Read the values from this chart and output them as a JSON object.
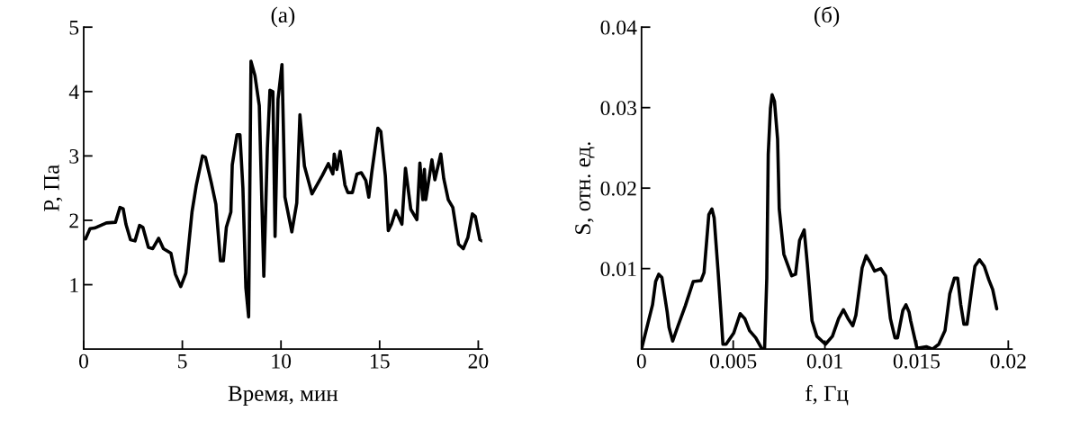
{
  "chart_data": [
    {
      "type": "line",
      "title": "(а)",
      "xlabel": "Время, мин",
      "ylabel": "P, Па",
      "xlim": [
        0,
        20.2
      ],
      "ylim": [
        0,
        5
      ],
      "xticks": [
        0,
        5,
        10,
        15,
        20
      ],
      "yticks": [
        1,
        2,
        3,
        4,
        5
      ],
      "grid": false,
      "legend": false,
      "series": [
        {
          "color": "#000000",
          "x": [
            0.09,
            0.32,
            0.55,
            1.15,
            1.61,
            1.84,
            2.0,
            2.14,
            2.37,
            2.6,
            2.83,
            3.0,
            3.28,
            3.5,
            3.8,
            4.04,
            4.42,
            4.65,
            4.92,
            5.18,
            5.49,
            5.71,
            6.02,
            6.17,
            6.47,
            6.7,
            6.93,
            7.08,
            7.23,
            7.46,
            7.53,
            7.77,
            7.92,
            8.07,
            8.22,
            8.36,
            8.48,
            8.68,
            8.9,
            9.13,
            9.31,
            9.44,
            9.59,
            9.7,
            9.85,
            10.05,
            10.2,
            10.55,
            10.8,
            10.96,
            11.19,
            11.57,
            12.1,
            12.4,
            12.63,
            12.7,
            12.83,
            13.0,
            13.24,
            13.39,
            13.62,
            13.85,
            14.07,
            14.3,
            14.45,
            14.6,
            14.91,
            15.06,
            15.29,
            15.44,
            15.6,
            15.82,
            16.13,
            16.31,
            16.58,
            16.89,
            17.04,
            17.19,
            17.27,
            17.34,
            17.65,
            17.8,
            18.1,
            18.25,
            18.48,
            18.71,
            19.0,
            19.24,
            19.47,
            19.7,
            19.85,
            20.08,
            20.2
          ],
          "values": [
            1.71,
            1.87,
            1.88,
            1.96,
            1.97,
            2.2,
            2.18,
            1.94,
            1.7,
            1.68,
            1.92,
            1.89,
            1.58,
            1.56,
            1.72,
            1.56,
            1.49,
            1.16,
            0.97,
            1.18,
            2.13,
            2.55,
            3.0,
            2.98,
            2.58,
            2.25,
            1.37,
            1.37,
            1.89,
            2.13,
            2.86,
            3.33,
            3.33,
            2.5,
            0.95,
            0.5,
            4.47,
            4.25,
            3.78,
            1.13,
            3.12,
            4.02,
            4.0,
            1.75,
            3.88,
            4.42,
            2.36,
            1.82,
            2.27,
            3.64,
            2.84,
            2.41,
            2.7,
            2.88,
            2.72,
            3.03,
            2.79,
            3.07,
            2.55,
            2.43,
            2.43,
            2.72,
            2.74,
            2.62,
            2.36,
            2.74,
            3.43,
            3.38,
            2.69,
            1.84,
            1.94,
            2.15,
            1.94,
            2.81,
            2.17,
            2.01,
            2.89,
            2.32,
            2.79,
            2.32,
            2.94,
            2.63,
            3.03,
            2.65,
            2.32,
            2.2,
            1.63,
            1.56,
            1.73,
            2.1,
            2.06,
            1.7,
            1.68
          ]
        }
      ]
    },
    {
      "type": "line",
      "title": "(б)",
      "xlabel": "f, Гц",
      "ylabel": "S, отн. ед.",
      "xlim": [
        0,
        0.0202
      ],
      "ylim": [
        0,
        0.04
      ],
      "xticks": [
        0,
        0.005,
        0.01,
        0.015,
        0.02
      ],
      "yticks": [
        0.01,
        0.02,
        0.03,
        0.04
      ],
      "grid": false,
      "legend": false,
      "series": [
        {
          "color": "#000000",
          "x": [
            0,
            0.0006,
            0.00077,
            0.00094,
            0.00111,
            0.0014,
            0.0015,
            0.0017,
            0.00196,
            0.00239,
            0.00282,
            0.00324,
            0.00341,
            0.00367,
            0.00384,
            0.00396,
            0.00418,
            0.00435,
            0.00444,
            0.00461,
            0.00503,
            0.00538,
            0.00563,
            0.00589,
            0.00623,
            0.00657,
            0.00671,
            0.00683,
            0.00691,
            0.00703,
            0.00712,
            0.00725,
            0.00742,
            0.00751,
            0.00776,
            0.00819,
            0.0084,
            0.00862,
            0.00887,
            0.00904,
            0.0093,
            0.00956,
            0.01003,
            0.01041,
            0.01075,
            0.01101,
            0.01126,
            0.01152,
            0.01169,
            0.01203,
            0.01225,
            0.01246,
            0.01271,
            0.01305,
            0.01331,
            0.01357,
            0.01382,
            0.01396,
            0.01425,
            0.01442,
            0.01459,
            0.01468,
            0.01502,
            0.01553,
            0.01587,
            0.01621,
            0.01655,
            0.01681,
            0.01706,
            0.01724,
            0.01741,
            0.01758,
            0.01775,
            0.018,
            0.01818,
            0.01843,
            0.01869,
            0.01894,
            0.01915,
            0.01937
          ],
          "values": [
            0,
            0.0055,
            0.0084,
            0.0093,
            0.0089,
            0.0046,
            0.0027,
            0.001,
            0.0027,
            0.0054,
            0.0084,
            0.0085,
            0.0095,
            0.0167,
            0.0174,
            0.0163,
            0.0095,
            0.0038,
            0.0006,
            0.0006,
            0.002,
            0.0044,
            0.0038,
            0.0023,
            0.0014,
            0,
            0,
            0.0088,
            0.0242,
            0.0299,
            0.0316,
            0.0308,
            0.0261,
            0.0174,
            0.0118,
            0.0091,
            0.0093,
            0.0135,
            0.0148,
            0.0106,
            0.0035,
            0.0016,
            0.0006,
            0.0016,
            0.0038,
            0.0049,
            0.0038,
            0.0029,
            0.0042,
            0.0101,
            0.0116,
            0.0108,
            0.0097,
            0.01,
            0.0091,
            0.0038,
            0.0014,
            0.0014,
            0.0048,
            0.0055,
            0.0046,
            0.0035,
            0.0001,
            0.0003,
            0,
            0.0006,
            0.0023,
            0.0069,
            0.0088,
            0.0088,
            0.0055,
            0.0031,
            0.0031,
            0.0074,
            0.0103,
            0.0111,
            0.0103,
            0.0086,
            0.0074,
            0.005
          ]
        }
      ]
    }
  ]
}
